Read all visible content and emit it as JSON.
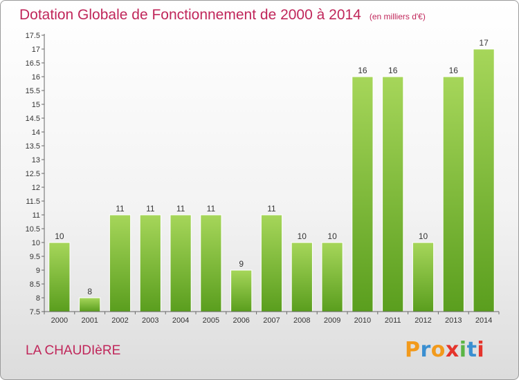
{
  "title": "Dotation Globale de Fonctionnement de 2000 à 2014",
  "unit_note": "(en milliers d'€)",
  "commune": "LA CHAUDIèRE",
  "brand": {
    "letters": [
      "P",
      "r",
      "o",
      "x",
      "i",
      "t",
      "i"
    ],
    "colors": [
      "#f29a1c",
      "#3a8fd1",
      "#f29a1c",
      "#e5342c",
      "#5ab545",
      "#3a8fd1",
      "#e5342c"
    ]
  },
  "colors": {
    "bar_top": "#a6d65a",
    "bar_bottom": "#5a9e1e",
    "title": "#c0265a"
  },
  "chart_data": {
    "type": "bar",
    "categories": [
      "2000",
      "2001",
      "2002",
      "2003",
      "2004",
      "2005",
      "2006",
      "2007",
      "2008",
      "2009",
      "2010",
      "2011",
      "2012",
      "2013",
      "2014"
    ],
    "values": [
      10,
      8,
      11,
      11,
      11,
      11,
      9,
      11,
      10,
      10,
      16,
      16,
      10,
      16,
      17
    ],
    "data_labels": [
      "10",
      "8",
      "11",
      "11",
      "11",
      "11",
      "9",
      "11",
      "10",
      "10",
      "16",
      "16",
      "10",
      "16",
      "17"
    ],
    "ylim": [
      7.5,
      17.5
    ],
    "yticks": [
      7.5,
      8,
      8.5,
      9,
      9.5,
      10,
      10.5,
      11,
      11.5,
      12,
      12.5,
      13,
      13.5,
      14,
      14.5,
      15,
      15.5,
      16,
      16.5,
      17,
      17.5
    ],
    "ytick_labels": [
      "7.5",
      "8",
      "8.5",
      "9",
      "9.5",
      "10",
      "10.5",
      "11",
      "11.5",
      "12",
      "12.5",
      "13",
      "13.5",
      "14",
      "14.5",
      "15",
      "15.5",
      "16",
      "16.5",
      "17",
      "17.5"
    ],
    "grid": false,
    "legend": "none"
  }
}
